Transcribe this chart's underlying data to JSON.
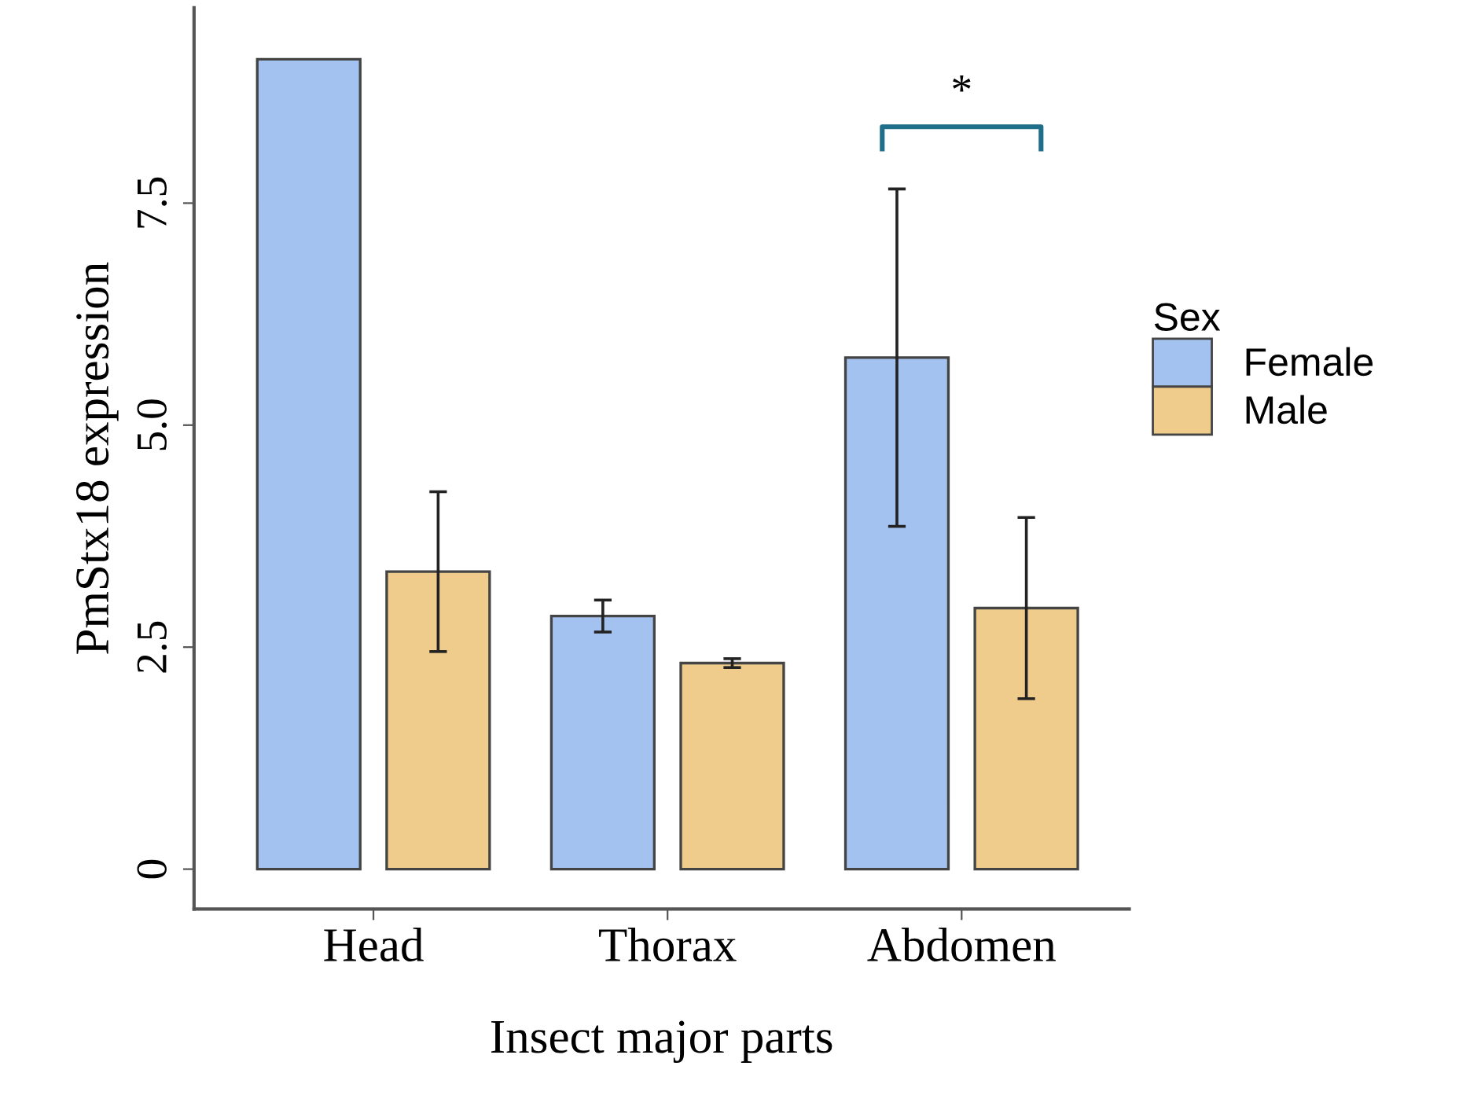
{
  "chart_data": {
    "type": "bar",
    "xlabel": "Insect major parts",
    "ylabel": "PmStx18 expression",
    "legend_title": "Sex",
    "categories": [
      "Head",
      "Thorax",
      "Abdomen"
    ],
    "series": [
      {
        "name": "Female",
        "color": "#a4c2f0",
        "values": [
          9.12,
          2.85,
          5.76
        ],
        "errors": [
          null,
          0.18,
          1.9
        ]
      },
      {
        "name": "Male",
        "color": "#efcc8c",
        "values": [
          3.35,
          2.32,
          2.94
        ],
        "errors": [
          0.9,
          0.05,
          1.02
        ]
      }
    ],
    "ylim": [
      -0.45,
      9.7
    ],
    "yticks": [
      0,
      2.5,
      {
        "value": 5,
        "label": "5.0"
      },
      7.5
    ],
    "annotations": [
      "*"
    ],
    "grid": false,
    "legend": "right"
  }
}
